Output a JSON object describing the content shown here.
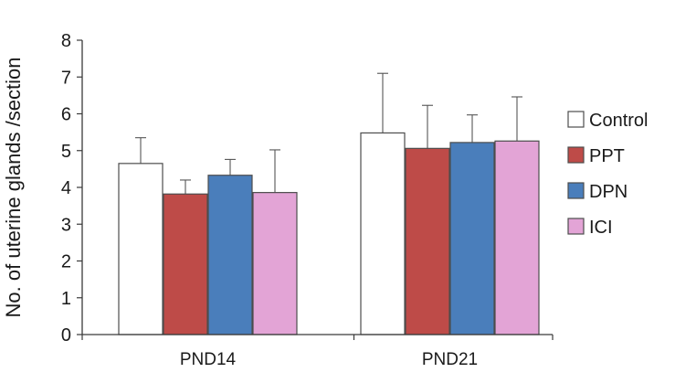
{
  "chart_data": {
    "type": "bar",
    "title": "",
    "xlabel": "",
    "ylabel": "No. of uterine glands /section",
    "ylim": [
      0,
      8
    ],
    "yticks": [
      0,
      1,
      2,
      3,
      4,
      5,
      6,
      7,
      8
    ],
    "categories": [
      "PND14",
      "PND21"
    ],
    "grid": false,
    "legend_position": "right",
    "series": [
      {
        "name": "Control",
        "color": "#ffffff",
        "values": [
          4.65,
          5.48
        ],
        "errors": [
          0.7,
          1.62
        ]
      },
      {
        "name": "PPT",
        "color": "#be4b48",
        "values": [
          3.82,
          5.06
        ],
        "errors": [
          0.38,
          1.17
        ]
      },
      {
        "name": "DPN",
        "color": "#4a7ebb",
        "values": [
          4.33,
          5.22
        ],
        "errors": [
          0.43,
          0.75
        ]
      },
      {
        "name": "ICI",
        "color": "#e3a4d6",
        "values": [
          3.86,
          5.26
        ],
        "errors": [
          1.16,
          1.2
        ]
      }
    ]
  }
}
